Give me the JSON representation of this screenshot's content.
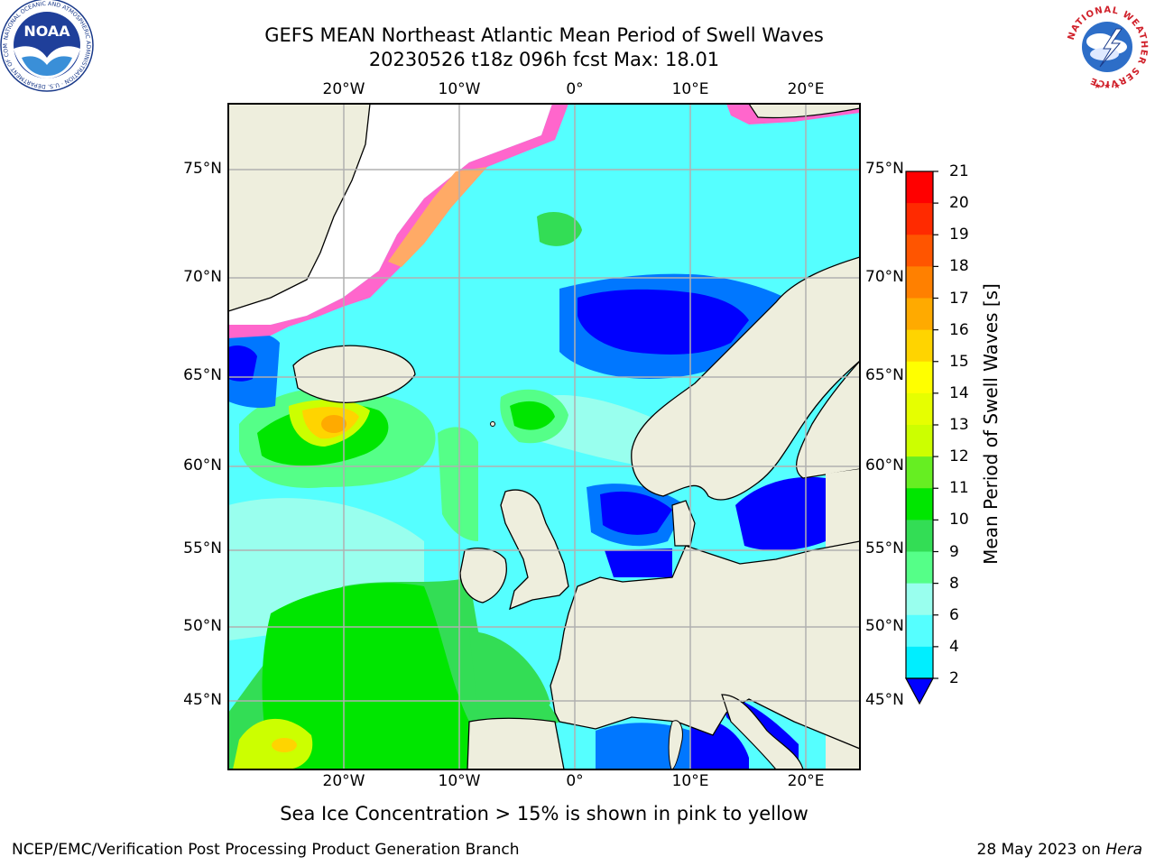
{
  "title_line1": "GEFS MEAN Northeast Atlantic Mean Period of Swell Waves",
  "title_line2": "20230526 t18z 096h fcst   Max: 18.01",
  "lon_labels": [
    "20°W",
    "10°W",
    "0°",
    "10°E",
    "20°E"
  ],
  "lat_labels": [
    "75°N",
    "70°N",
    "65°N",
    "60°N",
    "55°N",
    "50°N",
    "45°N"
  ],
  "colorbar": {
    "label": "Mean Period of Swell Waves [s]",
    "ticks": [
      "21",
      "20",
      "19",
      "18",
      "17",
      "16",
      "15",
      "14",
      "13",
      "12",
      "11",
      "10",
      "9",
      "8",
      "6",
      "4",
      "2"
    ],
    "colors": [
      "#ff0000",
      "#ff2a00",
      "#ff5500",
      "#ff8000",
      "#ffaa00",
      "#ffd400",
      "#ffff00",
      "#e6ff00",
      "#ccff00",
      "#66ee22",
      "#00e600",
      "#33dd55",
      "#55ff88",
      "#99ffee",
      "#55ffff",
      "#00eeff",
      "#0077ff"
    ],
    "under_color": "#0000ff"
  },
  "note": "Sea Ice Concentration > 15% is shown in pink to yellow",
  "footer_left": "NCEP/EMC/Verification Post Processing Product Generation Branch",
  "footer_date": "28 May 2023 on ",
  "footer_machine": "Hera",
  "logos": {
    "noaa_text": "NOAA",
    "noaa_ring": "NATIONAL OCEANIC AND ATMOSPHERIC ADMINISTRATION · U.S. DEPARTMENT OF COMMERCE",
    "nws_ring": "NATIONAL WEATHER SERVICE"
  }
}
